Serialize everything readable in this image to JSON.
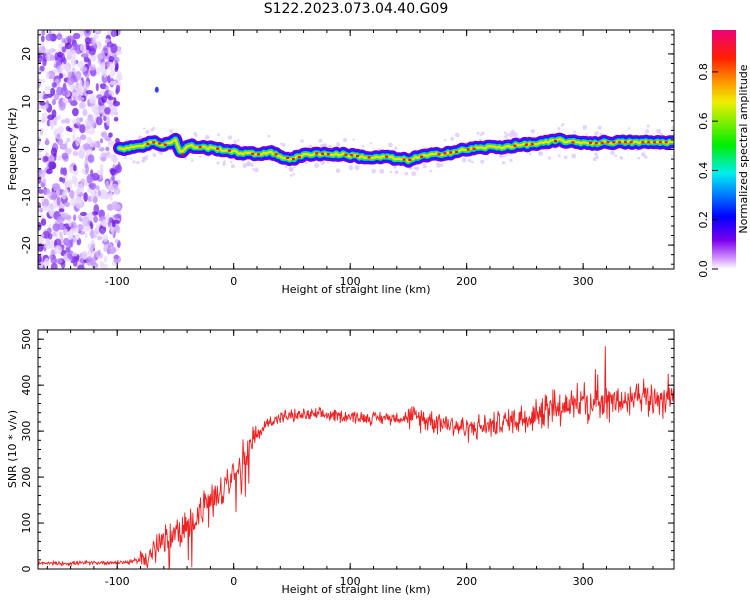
{
  "title": "S122.2023.073.04.40.G09",
  "chart_data": [
    {
      "type": "heatmap",
      "xlabel": "Height of straight line (km)",
      "ylabel": "Frequency (Hz)",
      "xlim": [
        -168,
        378
      ],
      "ylim": [
        -25,
        25
      ],
      "xticks": [
        -100,
        0,
        100,
        200,
        300
      ],
      "yticks": [
        -20,
        -10,
        0,
        10,
        20
      ],
      "colorbar": {
        "label": "Normalized spectral amplitude",
        "range": [
          0,
          0.97
        ],
        "ticks": [
          0.0,
          0.2,
          0.4,
          0.6,
          0.8
        ]
      },
      "noise_region_x": [
        -168,
        -98
      ],
      "tone_ridge": {
        "x": [
          -98,
          -90,
          -80,
          -70,
          -60,
          -50,
          -45,
          -40,
          -30,
          -20,
          -10,
          0,
          10,
          20,
          30,
          40,
          50,
          60,
          70,
          80,
          90,
          100,
          110,
          120,
          130,
          140,
          150,
          160,
          170,
          180,
          190,
          200,
          210,
          220,
          230,
          240,
          250,
          260,
          270,
          280,
          290,
          300,
          310,
          320,
          330,
          340,
          350,
          360,
          370,
          378
        ],
        "y": [
          0.0,
          0.5,
          0.8,
          1.5,
          1.0,
          2.0,
          -1.0,
          0.8,
          0.5,
          0.3,
          0.0,
          -0.5,
          -0.8,
          -1.0,
          -0.5,
          -1.5,
          -2.0,
          -1.2,
          -0.8,
          -1.0,
          -1.0,
          -1.2,
          -1.5,
          -1.8,
          -1.5,
          -2.0,
          -2.2,
          -1.5,
          -1.2,
          -0.8,
          -0.5,
          0.0,
          0.3,
          0.5,
          0.5,
          0.8,
          1.0,
          1.2,
          1.5,
          2.0,
          1.5,
          1.5,
          1.3,
          1.5,
          1.5,
          1.5,
          1.5,
          1.5,
          1.5,
          1.5
        ]
      }
    },
    {
      "type": "line",
      "xlabel": "Height of straight line (km)",
      "ylabel": "SNR (10 * v/v)",
      "xlim": [
        -168,
        378
      ],
      "ylim": [
        0,
        520
      ],
      "xticks": [
        -100,
        0,
        100,
        200,
        300
      ],
      "yticks": [
        0,
        100,
        200,
        300,
        400,
        500
      ],
      "series": [
        {
          "color": "#ee2020",
          "x": [
            -168,
            -150,
            -130,
            -110,
            -90,
            -80,
            -70,
            -60,
            -50,
            -40,
            -30,
            -20,
            -10,
            0,
            10,
            20,
            30,
            40,
            50,
            60,
            80,
            100,
            120,
            140,
            160,
            180,
            200,
            220,
            240,
            260,
            280,
            300,
            320,
            340,
            360,
            378
          ],
          "y": [
            12,
            12,
            13,
            14,
            15,
            20,
            35,
            60,
            80,
            95,
            120,
            150,
            175,
            215,
            255,
            290,
            320,
            330,
            333,
            335,
            335,
            332,
            328,
            330,
            328,
            320,
            305,
            312,
            325,
            340,
            355,
            360,
            362,
            365,
            370,
            375
          ]
        }
      ]
    }
  ]
}
